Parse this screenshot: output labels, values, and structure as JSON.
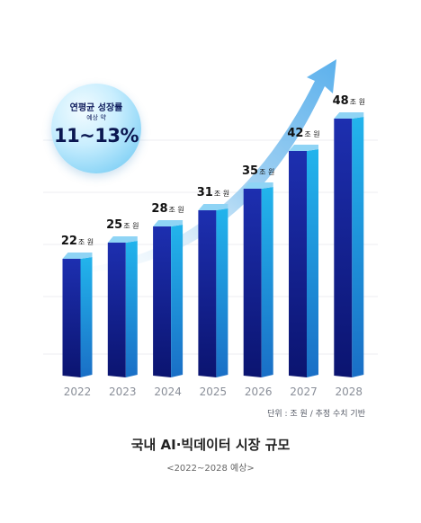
{
  "badge": {
    "title": "연평균 성장률",
    "subtitle": "예상 약",
    "value": "11~13%"
  },
  "note": "단위 : 조 원 / 추정 수치 기반",
  "title": "국내 AI·빅데이터 시장 규모",
  "subtitle": "<2022~2028 예상>",
  "chart_data": {
    "type": "bar",
    "categories": [
      "2022",
      "2023",
      "2024",
      "2025",
      "2026",
      "2027",
      "2028"
    ],
    "values": [
      22,
      25,
      28,
      31,
      35,
      42,
      48
    ],
    "value_unit": "조 원",
    "ylim": [
      0,
      58
    ],
    "grid": true,
    "colors": {
      "bar_front": "#0f1e99",
      "bar_side": "#1aa3e0",
      "bar_top": "#8fd4f5",
      "arrow": "#5fb3ea"
    }
  }
}
